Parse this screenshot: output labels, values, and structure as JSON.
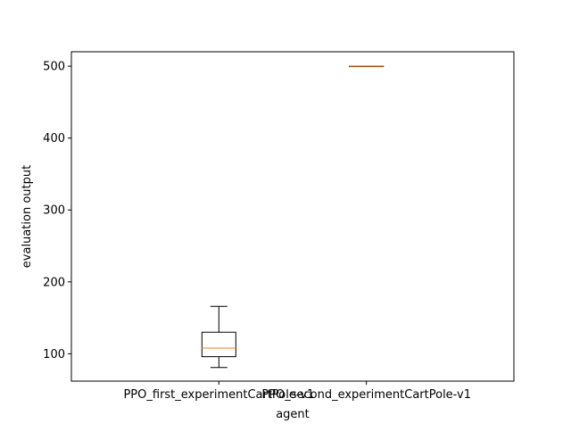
{
  "chart_data": {
    "type": "box",
    "title": "",
    "xlabel": "agent",
    "ylabel": "evaluation output",
    "categories": [
      "PPO_first_experimentCartPole-v1",
      "PPO_second_experimentCartPole-v1"
    ],
    "boxes": [
      {
        "whisker_low": 81,
        "q1": 96,
        "median": 108,
        "q3": 130,
        "whisker_high": 166
      },
      {
        "whisker_low": 500,
        "q1": 500,
        "median": 500,
        "q3": 500,
        "whisker_high": 500
      }
    ],
    "y_ticks": [
      100,
      200,
      300,
      400,
      500
    ],
    "ylim": [
      62,
      520
    ],
    "grid": false,
    "colors": {
      "box": "#000000",
      "median": "#ff7f0e",
      "axes": "#000000",
      "background": "#ffffff"
    }
  }
}
